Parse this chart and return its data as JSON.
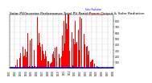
{
  "title": "Solar PV/Inverter Performance Total PV Panel Power Output & Solar Radiation",
  "bg_color": "#ffffff",
  "grid_color": "#aaaaaa",
  "bar_color": "#ff0000",
  "dot_color": "#0000ff",
  "legend_pv": "-- PV Panel Output",
  "legend_solar": "Solar Radiation",
  "ylim": [
    0,
    900
  ],
  "yticks": [
    100,
    200,
    300,
    400,
    500,
    600,
    700,
    800
  ],
  "title_fontsize": 3.2,
  "tick_fontsize": 2.2,
  "n_points": 300
}
